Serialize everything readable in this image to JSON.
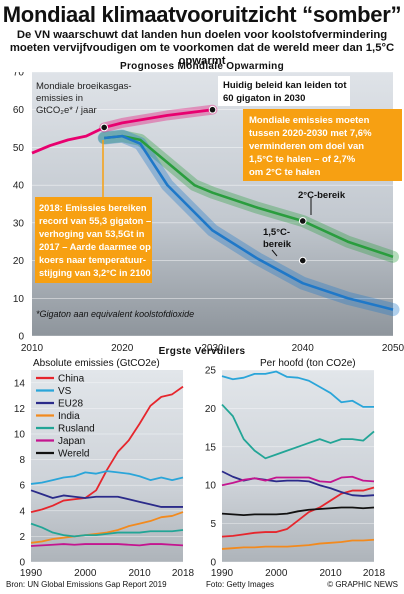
{
  "header": {
    "title": "Mondiaal klimaatvooruitzicht “somber”",
    "subtitle": "De VN waarschuwt dat landen hun doelen voor koolstofvermindering moeten vervijfvoudigen om te voorkomen dat de wereld meer dan 1,5°C opwarmt"
  },
  "top_section_title": "Prognoses Mondiale Opwarming",
  "bottom_section_title": "Ergste Vervuilers",
  "annotations": {
    "ylabel_lines": [
      "Mondiale broeikasgas-",
      "emissies in",
      "GtCO₂e* / jaar"
    ],
    "policy_lines": [
      "Huidig beleid kan leiden tot",
      "60 gigaton in 2030"
    ],
    "reduce_lines": [
      "Mondiale emissies moeten",
      "tussen 2020-2030 met 7,6%",
      "verminderen om doel van",
      "1,5°C te halen – of 2,7%",
      "om 2°C te halen"
    ],
    "record_lines": [
      "2018: Emissies bereiken",
      "record van 55,3 gigaton –",
      "verhoging van 53,5Gt in",
      "2017 – Aarde daarmee op",
      "koers naar temperatuur-",
      "stijging van 3,2°C in 2100"
    ],
    "label_2c": "2°C-bereik",
    "label_15c_lines": [
      "1,5°C-",
      "bereik"
    ],
    "footnote": "*Gigaton aan equivalent koolstofdioxide"
  },
  "footer": {
    "source": "Bron: UN Global Emissions Gap Report 2019",
    "photo": "Foto: Getty Images",
    "credit": "© GRAPHIC NEWS"
  },
  "colors": {
    "background_sky": "#c9cfd6",
    "policy_line": "#e8006f",
    "green_line": "#2a9d3e",
    "blue_line": "#1f78c8",
    "orange_box": "#f7a012",
    "china": "#e6262d",
    "us": "#2aa5d9",
    "eu28": "#2b2b8a",
    "india": "#f28a1e",
    "russia": "#22a596",
    "japan": "#c4158f",
    "world": "#111111"
  },
  "legend": [
    "China",
    "VS",
    "EU28",
    "India",
    "Rusland",
    "Japan",
    "Wereld"
  ],
  "chart_data": [
    {
      "type": "line",
      "title": "Prognoses Mondiale Opwarming",
      "ylabel": "Mondiale broeikasgas-emissies in GtCO2e* / jaar",
      "xlim": [
        2010,
        2050
      ],
      "ylim": [
        0,
        70
      ],
      "xticks": [
        2010,
        2020,
        2030,
        2040,
        2050
      ],
      "yticks": [
        0,
        10,
        20,
        30,
        40,
        50,
        60,
        70
      ],
      "series": [
        {
          "key": "historic",
          "x": [
            2010,
            2012,
            2014,
            2016,
            2018
          ],
          "y": [
            48.5,
            50.5,
            52.0,
            53.0,
            55.3
          ]
        },
        {
          "key": "policy",
          "x": [
            2018,
            2020,
            2025,
            2030
          ],
          "y": [
            55.3,
            56.5,
            58.5,
            60.0
          ]
        },
        {
          "key": "2c",
          "x": [
            2018,
            2020,
            2022,
            2025,
            2028,
            2030,
            2035,
            2040,
            2045,
            2050
          ],
          "y": [
            52.5,
            53.0,
            52.0,
            46.0,
            40.0,
            38.0,
            34.0,
            30.5,
            25.0,
            21.0
          ]
        },
        {
          "key": "15c",
          "x": [
            2018,
            2020,
            2022,
            2025,
            2030,
            2035,
            2040,
            2045,
            2050
          ],
          "y": [
            52.5,
            53.0,
            51.0,
            40.0,
            28.0,
            20.5,
            14.0,
            10.0,
            7.0
          ]
        }
      ],
      "points": [
        {
          "x": 2018,
          "y": 55.3
        },
        {
          "x": 2030,
          "y": 60.0
        },
        {
          "x": 2040,
          "y": 30.5
        },
        {
          "x": 2040,
          "y": 20.0
        }
      ]
    },
    {
      "type": "line",
      "title": "Absolute emissies (GtCO2e)",
      "xlim": [
        1990,
        2018
      ],
      "ylim": [
        0,
        15
      ],
      "xticks": [
        1990,
        2000,
        2010,
        2018
      ],
      "yticks": [
        0,
        2,
        4,
        6,
        8,
        10,
        12,
        14
      ],
      "x": [
        1990,
        1992,
        1994,
        1996,
        1998,
        2000,
        2002,
        2004,
        2006,
        2008,
        2010,
        2012,
        2014,
        2016,
        2018
      ],
      "series": [
        {
          "name": "China",
          "values": [
            3.9,
            4.1,
            4.4,
            4.8,
            4.9,
            5.0,
            5.6,
            7.2,
            8.6,
            9.5,
            10.8,
            12.2,
            12.9,
            13.1,
            13.7
          ]
        },
        {
          "name": "VS",
          "values": [
            6.1,
            6.2,
            6.4,
            6.6,
            6.7,
            7.0,
            6.9,
            7.1,
            7.0,
            6.9,
            6.7,
            6.4,
            6.6,
            6.4,
            6.6
          ]
        },
        {
          "name": "EU28",
          "values": [
            5.6,
            5.3,
            5.0,
            5.2,
            5.1,
            5.0,
            5.1,
            5.1,
            5.1,
            4.9,
            4.7,
            4.5,
            4.3,
            4.3,
            4.3
          ]
        },
        {
          "name": "India",
          "values": [
            1.5,
            1.6,
            1.8,
            1.9,
            2.0,
            2.1,
            2.2,
            2.3,
            2.5,
            2.8,
            3.0,
            3.2,
            3.5,
            3.6,
            3.9
          ]
        },
        {
          "name": "Rusland",
          "values": [
            3.0,
            2.7,
            2.3,
            2.1,
            2.0,
            2.1,
            2.1,
            2.2,
            2.3,
            2.3,
            2.3,
            2.4,
            2.4,
            2.4,
            2.5
          ]
        },
        {
          "name": "Japan",
          "values": [
            1.25,
            1.3,
            1.35,
            1.4,
            1.35,
            1.4,
            1.4,
            1.4,
            1.4,
            1.35,
            1.3,
            1.4,
            1.4,
            1.35,
            1.3
          ]
        }
      ]
    },
    {
      "type": "line",
      "title": "Per hoofd (ton CO2e)",
      "xlim": [
        1990,
        2018
      ],
      "ylim": [
        0,
        25
      ],
      "xticks": [
        1990,
        2000,
        2010,
        2018
      ],
      "yticks": [
        0,
        5,
        10,
        15,
        20,
        25
      ],
      "x": [
        1990,
        1992,
        1994,
        1996,
        1998,
        2000,
        2002,
        2004,
        2006,
        2008,
        2010,
        2012,
        2014,
        2016,
        2018
      ],
      "series": [
        {
          "name": "China",
          "values": [
            3.3,
            3.4,
            3.6,
            3.8,
            3.9,
            3.9,
            4.3,
            5.4,
            6.5,
            7.1,
            8.0,
            8.9,
            9.3,
            9.3,
            9.7
          ]
        },
        {
          "name": "VS",
          "values": [
            24.2,
            23.8,
            24.0,
            24.5,
            24.5,
            24.8,
            24.1,
            24.0,
            23.6,
            22.8,
            22.0,
            20.8,
            21.0,
            20.2,
            20.2
          ]
        },
        {
          "name": "EU28",
          "values": [
            11.8,
            11.1,
            10.6,
            10.9,
            10.7,
            10.5,
            10.6,
            10.6,
            10.5,
            10.0,
            9.6,
            9.1,
            8.7,
            8.6,
            8.7
          ]
        },
        {
          "name": "India",
          "values": [
            1.7,
            1.8,
            1.9,
            1.9,
            2.0,
            2.0,
            2.0,
            2.1,
            2.2,
            2.4,
            2.5,
            2.6,
            2.8,
            2.8,
            2.9
          ]
        },
        {
          "name": "Rusland",
          "values": [
            20.5,
            19.0,
            16.0,
            14.5,
            13.5,
            14.0,
            14.5,
            15.0,
            15.5,
            16.0,
            15.5,
            16.0,
            16.0,
            15.8,
            17.0
          ]
        },
        {
          "name": "Japan",
          "values": [
            10.0,
            10.3,
            10.7,
            10.9,
            10.6,
            11.0,
            11.0,
            11.0,
            11.0,
            10.5,
            10.4,
            11.0,
            11.1,
            10.6,
            10.5
          ]
        },
        {
          "name": "Wereld",
          "values": [
            6.3,
            6.2,
            6.1,
            6.2,
            6.2,
            6.2,
            6.3,
            6.6,
            6.8,
            6.9,
            7.0,
            7.1,
            7.1,
            7.0,
            7.1
          ]
        }
      ]
    }
  ]
}
